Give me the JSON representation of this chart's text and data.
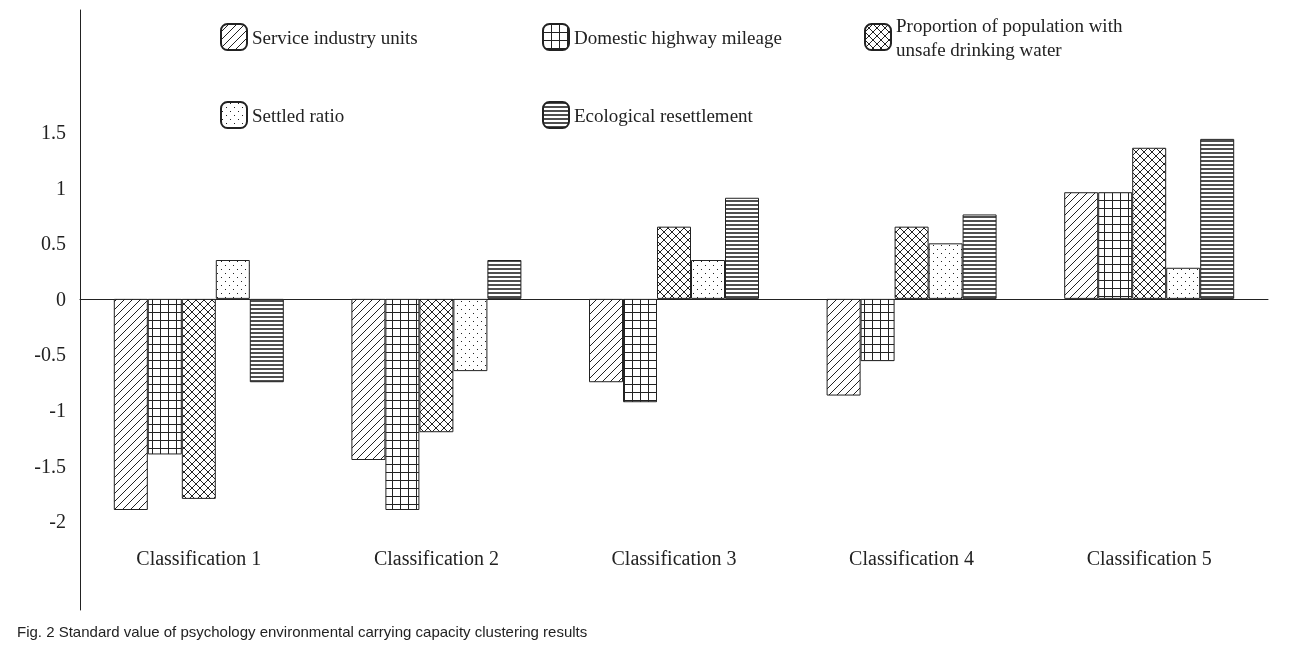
{
  "chart_data": {
    "type": "bar",
    "title": "Fig. 2 Standard value of psychology environmental carrying capacity clustering results",
    "categories": [
      "Classification 1",
      "Classification 2",
      "Classification 3",
      "Classification 4",
      "Classification 5"
    ],
    "series": [
      {
        "name": "Service industry units",
        "color": "#222222",
        "values": [
          -1.9,
          -1.45,
          -0.75,
          -0.87,
          0.96
        ]
      },
      {
        "name": "Domestic highway mileage",
        "color": "#222222",
        "values": [
          -1.4,
          -1.9,
          -0.93,
          -0.56,
          0.96
        ]
      },
      {
        "name": "Proportion of population with unsafe drinking water",
        "color": "#222222",
        "values": [
          -1.8,
          -1.2,
          0.65,
          0.65,
          1.36
        ]
      },
      {
        "name": "Settled ratio",
        "color": "#222222",
        "values": [
          0.35,
          -0.65,
          0.35,
          0.5,
          0.28
        ]
      },
      {
        "name": "Ecological resettlement",
        "color": "#222222",
        "values": [
          -0.75,
          0.35,
          0.91,
          0.76,
          1.44
        ]
      }
    ],
    "ylim": [
      -2.8,
      2.6
    ],
    "yticks": [
      -2,
      -1.5,
      -1,
      -0.5,
      0,
      0.5,
      1,
      1.5
    ],
    "legend": "top left"
  }
}
